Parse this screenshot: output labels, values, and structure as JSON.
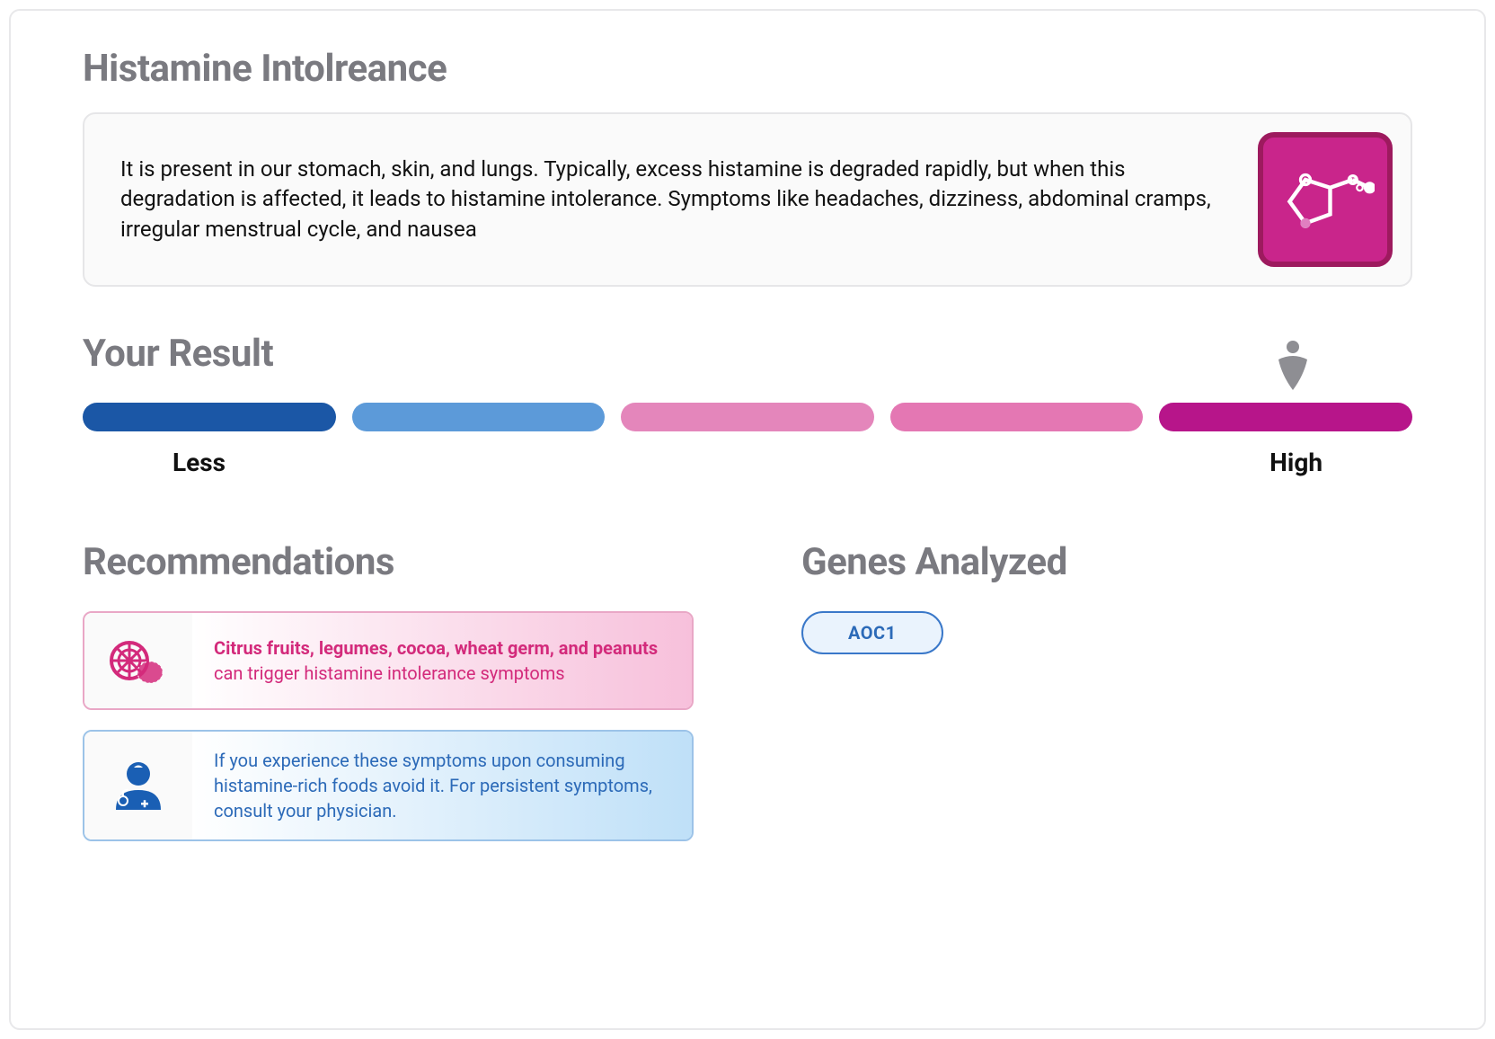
{
  "page_title": "Histamine Intolreance",
  "info": {
    "text": "It is present in our stomach, skin, and lungs. Typically, excess histamine is degraded rapidly, but when this degradation is affected, it leads to histamine intolerance. Symptoms like headaches, dizziness, abdominal cramps, irregular menstrual cycle, and nausea",
    "icon_bg": "#c9258b",
    "icon_border": "#9d1a5e"
  },
  "result": {
    "title": "Your Result",
    "label_low": "Less",
    "label_high": "High",
    "segments": [
      {
        "color": "#1b57a6"
      },
      {
        "color": "#5c9ad9"
      },
      {
        "color": "#e486bb"
      },
      {
        "color": "#e477b3"
      },
      {
        "color": "#b7158a"
      }
    ],
    "marker_position_pct": 91,
    "marker_color": "#8e8e93"
  },
  "recommendations": {
    "title": "Recommendations",
    "items": [
      {
        "bold": "Citrus fruits, legumes, cocoa, wheat germ, and peanuts",
        "rest": " can trigger histamine intolerance symptoms",
        "text_color": "#d32a7b",
        "border_color": "#e9a7c6",
        "grad_from": "#ffffff",
        "grad_to": "#f7c0db",
        "icon": "food",
        "icon_color": "#d32a7b"
      },
      {
        "bold": "",
        "rest": "If you experience these symptoms upon consuming histamine-rich foods avoid it. For persistent symptoms, consult your physician.",
        "text_color": "#2c6ab8",
        "border_color": "#9cc3e8",
        "grad_from": "#ffffff",
        "grad_to": "#bfe0f8",
        "icon": "doctor",
        "icon_color": "#1a5fb4"
      }
    ]
  },
  "genes": {
    "title": "Genes Analyzed",
    "items": [
      "AOC1"
    ]
  }
}
